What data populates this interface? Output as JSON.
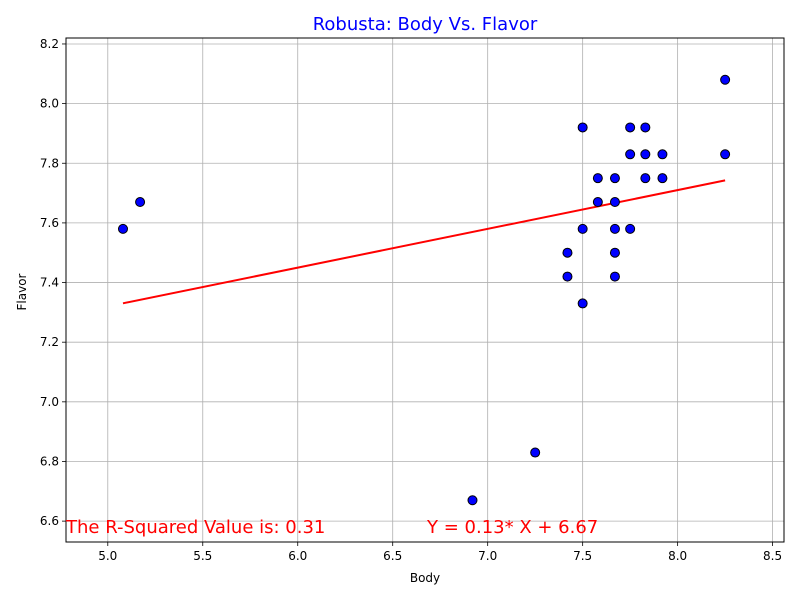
{
  "chart_data": {
    "type": "scatter",
    "title": "Robusta: Body Vs. Flavor",
    "title_color": "#0000ff",
    "xlabel": "Body",
    "ylabel": "Flavor",
    "xlim": [
      4.78,
      8.56
    ],
    "ylim": [
      6.53,
      8.22
    ],
    "xticks": [
      "5.0",
      "5.5",
      "6.0",
      "6.5",
      "7.0",
      "7.5",
      "8.0",
      "8.5"
    ],
    "yticks": [
      "6.6",
      "6.8",
      "7.0",
      "7.2",
      "7.4",
      "7.6",
      "7.8",
      "8.0",
      "8.2"
    ],
    "grid": true,
    "marker_color": "#0000ff",
    "marker_edge_color": "#000000",
    "line_color": "#ff0000",
    "points": [
      {
        "x": 5.08,
        "y": 7.58
      },
      {
        "x": 5.17,
        "y": 7.67
      },
      {
        "x": 6.92,
        "y": 6.67
      },
      {
        "x": 7.25,
        "y": 6.83
      },
      {
        "x": 7.42,
        "y": 7.5
      },
      {
        "x": 7.42,
        "y": 7.42
      },
      {
        "x": 7.5,
        "y": 7.92
      },
      {
        "x": 7.5,
        "y": 7.58
      },
      {
        "x": 7.5,
        "y": 7.33
      },
      {
        "x": 7.58,
        "y": 7.75
      },
      {
        "x": 7.58,
        "y": 7.67
      },
      {
        "x": 7.67,
        "y": 7.75
      },
      {
        "x": 7.67,
        "y": 7.67
      },
      {
        "x": 7.67,
        "y": 7.58
      },
      {
        "x": 7.67,
        "y": 7.5
      },
      {
        "x": 7.67,
        "y": 7.42
      },
      {
        "x": 7.75,
        "y": 7.92
      },
      {
        "x": 7.75,
        "y": 7.83
      },
      {
        "x": 7.75,
        "y": 7.58
      },
      {
        "x": 7.83,
        "y": 7.92
      },
      {
        "x": 7.83,
        "y": 7.83
      },
      {
        "x": 7.83,
        "y": 7.75
      },
      {
        "x": 7.92,
        "y": 7.83
      },
      {
        "x": 7.92,
        "y": 7.75
      },
      {
        "x": 8.25,
        "y": 8.08
      },
      {
        "x": 8.25,
        "y": 7.83
      }
    ],
    "regression": {
      "slope": 0.13,
      "intercept": 6.67,
      "x_start": 5.08,
      "x_end": 8.25
    },
    "annotations": {
      "r_squared": "The R-Squared Value is: 0.31",
      "equation": "Y = 0.13* X + 6.67",
      "color": "#ff0000"
    }
  }
}
